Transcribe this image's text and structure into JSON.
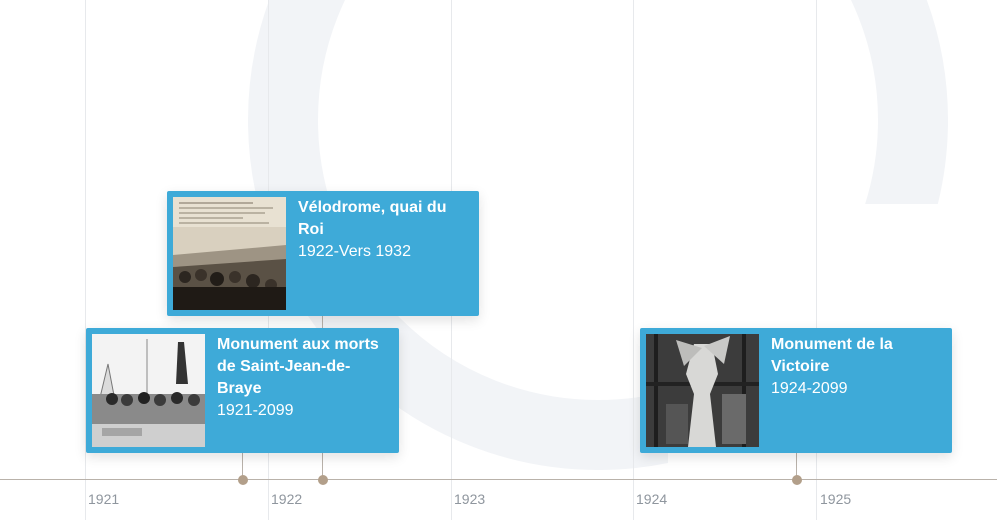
{
  "timeline": {
    "years": [
      "1921",
      "1922",
      "1923",
      "1924",
      "1925"
    ],
    "events": [
      {
        "title_lines": [
          "Vélodrome, quai du Roi"
        ],
        "date": "1922-Vers 1932",
        "image": "vintage-postcard-crowd-photo"
      },
      {
        "title_lines": [
          "Monument aux morts",
          "de Saint-Jean-de-",
          "Braye"
        ],
        "date": "1921-2099",
        "image": "war-memorial-ceremony-photo"
      },
      {
        "title_lines": [
          "Monument de la",
          "Victoire"
        ],
        "date": "1924-2099",
        "image": "victory-statue-sculpture-photo"
      }
    ]
  },
  "colors": {
    "card": "#3eaad8",
    "axis": "#b9b2aa",
    "dot": "#b29f8a",
    "tick_text": "#8f969e"
  }
}
